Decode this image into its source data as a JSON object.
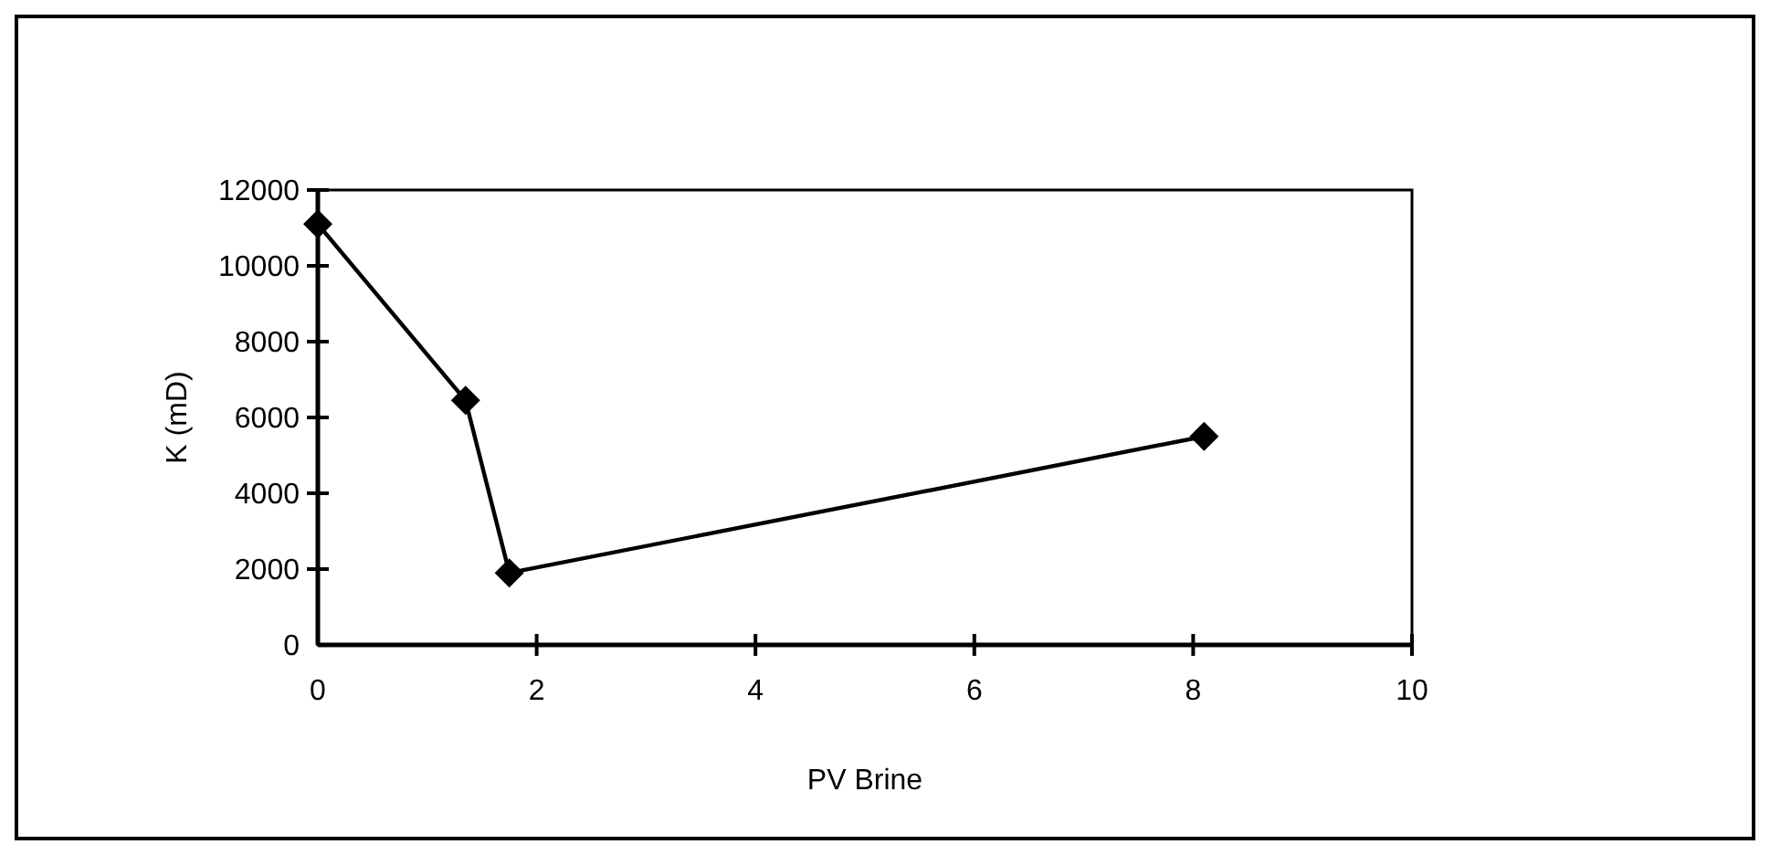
{
  "chart_data": {
    "type": "line",
    "xlabel": "PV Brine",
    "ylabel": "K (mD)",
    "x": [
      0,
      1.35,
      1.75,
      8.1
    ],
    "series": [
      {
        "color": "#000000",
        "values": [
          11100,
          6450,
          1900,
          5500
        ]
      }
    ],
    "xlim": [
      0,
      10
    ],
    "xticks": [
      0,
      2,
      4,
      6,
      8,
      10
    ],
    "ylim": [
      0,
      12000
    ],
    "yticks": [
      0,
      2000,
      4000,
      6000,
      8000,
      10000,
      12000
    ],
    "marker": "diamond",
    "line_style": "solid",
    "grid": false
  }
}
